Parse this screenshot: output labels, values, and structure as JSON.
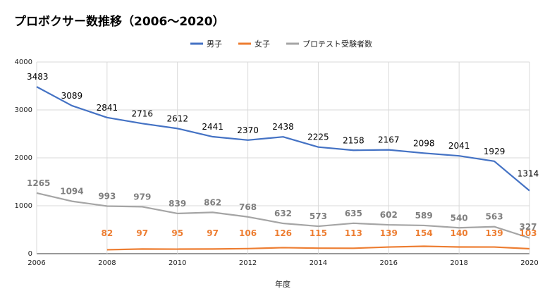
{
  "chart_data": {
    "type": "line",
    "title": "プロボクサー数推移（2006〜2020）",
    "xlabel": "年度",
    "ylabel": "",
    "x": [
      2006,
      2007,
      2008,
      2009,
      2010,
      2011,
      2012,
      2013,
      2014,
      2015,
      2016,
      2017,
      2018,
      2019,
      2020
    ],
    "x_ticks": [
      "2006",
      "2008",
      "2010",
      "2012",
      "2014",
      "2016",
      "2018",
      "2020"
    ],
    "y_ticks": [
      "0",
      "1000",
      "2000",
      "3000",
      "4000"
    ],
    "ylim": [
      0,
      4000
    ],
    "xlim": [
      2006,
      2020
    ],
    "grid": "on",
    "legend_position": "top-center",
    "series": [
      {
        "name": "男子",
        "color": "#4472C4",
        "label_color": "#000000",
        "bold_labels": false,
        "values": [
          3483,
          3089,
          2841,
          2716,
          2612,
          2441,
          2370,
          2438,
          2225,
          2158,
          2167,
          2098,
          2041,
          1929,
          1314
        ]
      },
      {
        "name": "女子",
        "color": "#ED7D31",
        "label_color": "#ED7D31",
        "bold_labels": true,
        "values": [
          null,
          null,
          82,
          97,
          95,
          97,
          106,
          126,
          115,
          113,
          139,
          154,
          140,
          139,
          103
        ]
      },
      {
        "name": "プロテスト受験者数",
        "color": "#A5A5A5",
        "label_color": "#7F7F7F",
        "bold_labels": true,
        "values": [
          1265,
          1094,
          993,
          979,
          839,
          862,
          768,
          632,
          573,
          635,
          602,
          589,
          540,
          563,
          327
        ]
      }
    ]
  }
}
